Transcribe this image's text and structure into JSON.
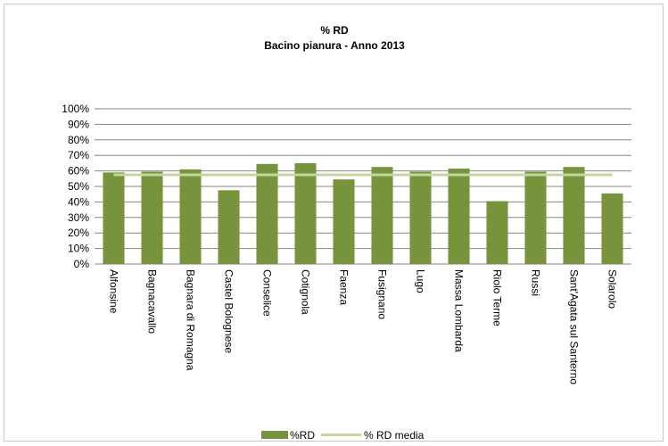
{
  "chart_data": {
    "type": "bar",
    "title": "% RD",
    "subtitle": "Bacino pianura - Anno 2013",
    "categories": [
      "Alfonsine",
      "Bagnacavallo",
      "Bagnara di Romagna",
      "Castel Bolognese",
      "Conselice",
      "Cotignola",
      "Faenza",
      "Fusignano",
      "Lugo",
      "Massa Lombarda",
      "Riolo Terme",
      "Russi",
      "Sant'Agata sul Santerno",
      "Solarolo"
    ],
    "series": [
      {
        "name": "%RD",
        "type": "bar",
        "color": "#77933c",
        "values": [
          59,
          59.5,
          61,
          47.5,
          64.5,
          65,
          54.5,
          62.5,
          59.5,
          61.5,
          40.5,
          59.5,
          62.5,
          45.5
        ]
      },
      {
        "name": "% RD media",
        "type": "line",
        "color": "#c3d69b",
        "values": [
          57.5,
          57.5,
          57.5,
          57.5,
          57.5,
          57.5,
          57.5,
          57.5,
          57.5,
          57.5,
          57.5,
          57.5,
          57.5,
          57.5
        ]
      }
    ],
    "y_ticks": [
      "0%",
      "10%",
      "20%",
      "30%",
      "40%",
      "50%",
      "60%",
      "70%",
      "80%",
      "90%",
      "100%"
    ],
    "ylim": [
      0,
      100
    ],
    "grid": true,
    "legend_position": "bottom"
  }
}
